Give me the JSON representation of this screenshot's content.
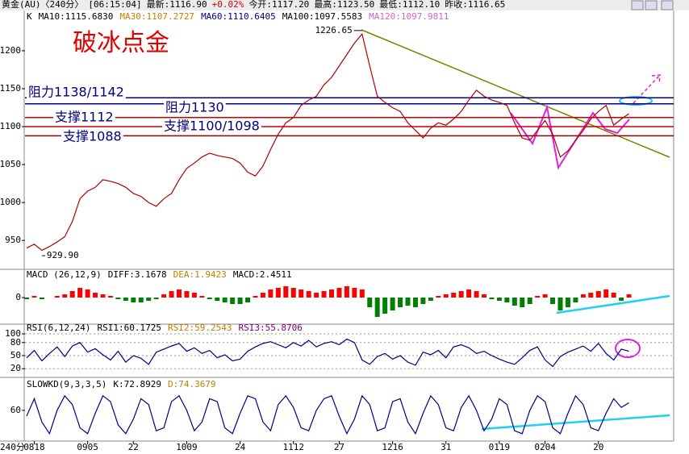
{
  "header": {
    "symbol": "黄金(AU)〈240分〉",
    "time": "[06:15:04]",
    "latest": "最新:1116.90",
    "change": "+0.02%",
    "open": "今开:1117.20",
    "high": "最高:1123.50",
    "low": "最低:1112.10",
    "prev_close": "昨收:1116.65"
  },
  "chart_data": [
    {
      "type": "line",
      "title": "破冰点金",
      "panel_label": "K",
      "x_unit_label": "240分",
      "indicators": [
        {
          "label": "MA10:1115.6830",
          "color": "#000000"
        },
        {
          "label": "MA30:1107.2727",
          "color": "#c08000"
        },
        {
          "label": "MA60:1110.6405",
          "color": "#000080"
        },
        {
          "label": "MA100:1097.5583",
          "color": "#000000"
        },
        {
          "label": "MA120:1097.9811",
          "color": "#cc66cc"
        }
      ],
      "categories": [
        null,
        "0818",
        null,
        null,
        null,
        null,
        null,
        null,
        "0905",
        null,
        null,
        null,
        null,
        null,
        "22",
        null,
        null,
        null,
        null,
        null,
        null,
        "1009",
        null,
        null,
        null,
        null,
        null,
        null,
        "24",
        null,
        null,
        null,
        null,
        null,
        null,
        "1112",
        null,
        null,
        null,
        null,
        null,
        "27",
        null,
        null,
        null,
        null,
        null,
        null,
        "1216",
        null,
        null,
        null,
        null,
        null,
        null,
        "31",
        null,
        null,
        null,
        null,
        null,
        null,
        "0119",
        null,
        null,
        null,
        null,
        null,
        "0204",
        null,
        null,
        null,
        null,
        null,
        null,
        "20",
        null,
        null,
        null,
        null
      ],
      "series": [
        {
          "color": "#b00000",
          "values": [
            940,
            945,
            937,
            942,
            948,
            955,
            975,
            1005,
            1015,
            1020,
            1030,
            1028,
            1025,
            1020,
            1012,
            1008,
            1000,
            995,
            1005,
            1012,
            1030,
            1045,
            1052,
            1060,
            1065,
            1062,
            1060,
            1058,
            1052,
            1040,
            1035,
            1048,
            1070,
            1090,
            1105,
            1112,
            1128,
            1135,
            1140,
            1155,
            1165,
            1180,
            1195,
            1210,
            1222,
            1180,
            1140,
            1132,
            1125,
            1120,
            1105,
            1095,
            1085,
            1098,
            1105,
            1102,
            1110,
            1120,
            1135,
            1148,
            1140,
            1135,
            1132,
            1128,
            1105,
            1085,
            1082,
            1095,
            1108,
            1090,
            1060,
            1068,
            1082,
            1095,
            1110,
            1120,
            1128,
            1102,
            1110,
            1117
          ]
        }
      ],
      "ylim": [
        913,
        1252
      ],
      "yticks": [
        950,
        1000,
        1050,
        1100,
        1150,
        1200
      ],
      "levels": [
        {
          "label": "阻力1138/1142",
          "value": 1138,
          "color": "#000080"
        },
        {
          "label": "阻力1130",
          "value": 1130,
          "color": "#000080"
        },
        {
          "label": "支撑1112",
          "value": 1112,
          "color": "#cc0000"
        },
        {
          "label": "支撑1100/1098",
          "value": 1100,
          "color": "#cc0000"
        },
        {
          "label": "支撑1088",
          "value": 1088,
          "color": "#990000"
        }
      ],
      "extremes": [
        1226.65,
        {
          "value": 929.9,
          "label": "929.90"
        }
      ]
    },
    {
      "type": "bar",
      "title": "MACD (26,12,9)",
      "indicators": [
        {
          "label": "DIFF:3.1678",
          "color": "#000000"
        },
        {
          "label": "DEA:1.9423",
          "color": "#c08000"
        },
        {
          "label": "MACD:2.4511",
          "color": "#000000"
        }
      ],
      "values": [
        -1,
        1,
        -1,
        0,
        1,
        2,
        4,
        6,
        5,
        3,
        2,
        1,
        -1,
        -2,
        -3,
        -3,
        -2,
        -1,
        2,
        4,
        5,
        4,
        3,
        1,
        -1,
        -2,
        -3,
        -4,
        -4,
        -3,
        1,
        3,
        5,
        6,
        7,
        6,
        5,
        4,
        3,
        4,
        5,
        6,
        7,
        6,
        5,
        -6,
        -12,
        -10,
        -8,
        -6,
        -5,
        -6,
        -4,
        -2,
        1,
        2,
        3,
        4,
        5,
        4,
        2,
        -1,
        -2,
        -3,
        -5,
        -6,
        -4,
        1,
        2,
        -4,
        -8,
        -6,
        -3,
        2,
        3,
        4,
        5,
        3,
        -2,
        2
      ],
      "up_color": "#ff0000",
      "down_color": "#008000",
      "ylim": [
        -14,
        14
      ],
      "yticks": [
        0
      ]
    },
    {
      "type": "line",
      "title": "RSI(6,12,24)",
      "indicators": [
        {
          "label": "RSI1:60.1725",
          "color": "#000000"
        },
        {
          "label": "RSI2:59.2543",
          "color": "#c08000"
        },
        {
          "label": "RSI3:55.8706",
          "color": "#800080"
        }
      ],
      "series": [
        {
          "color": "#000080",
          "values": [
            45,
            62,
            38,
            55,
            70,
            48,
            72,
            80,
            58,
            66,
            52,
            40,
            60,
            35,
            50,
            44,
            30,
            58,
            65,
            72,
            78,
            60,
            68,
            55,
            62,
            45,
            52,
            38,
            42,
            60,
            70,
            78,
            82,
            75,
            68,
            80,
            72,
            85,
            70,
            78,
            82,
            75,
            88,
            80,
            40,
            30,
            48,
            55,
            42,
            50,
            35,
            28,
            58,
            52,
            62,
            45,
            70,
            75,
            68,
            55,
            60,
            50,
            42,
            35,
            30,
            45,
            62,
            70,
            40,
            25,
            48,
            58,
            65,
            72,
            60,
            78,
            55,
            40,
            65,
            60
          ]
        }
      ],
      "ylim": [
        0,
        100
      ],
      "yticks": [
        20,
        50,
        80,
        100
      ],
      "grid": true
    },
    {
      "type": "line",
      "title": "SLOWKD(9,3,3,5)",
      "indicators": [
        {
          "label": "K:72.8929",
          "color": "#000000"
        },
        {
          "label": "D:74.3679",
          "color": "#c08000"
        }
      ],
      "series": [
        {
          "color": "#000080",
          "values": [
            50,
            80,
            40,
            20,
            60,
            85,
            70,
            30,
            20,
            55,
            85,
            75,
            35,
            20,
            45,
            80,
            70,
            25,
            30,
            75,
            85,
            60,
            25,
            40,
            80,
            75,
            30,
            20,
            55,
            85,
            80,
            40,
            25,
            70,
            85,
            65,
            30,
            25,
            60,
            80,
            85,
            50,
            20,
            45,
            85,
            70,
            25,
            30,
            75,
            80,
            40,
            20,
            55,
            85,
            70,
            30,
            25,
            65,
            85,
            60,
            25,
            45,
            80,
            70,
            25,
            20,
            60,
            85,
            75,
            30,
            20,
            55,
            85,
            70,
            30,
            25,
            55,
            80,
            65,
            73
          ]
        }
      ],
      "ylim": [
        10,
        100
      ],
      "yticks": [
        60
      ]
    }
  ]
}
